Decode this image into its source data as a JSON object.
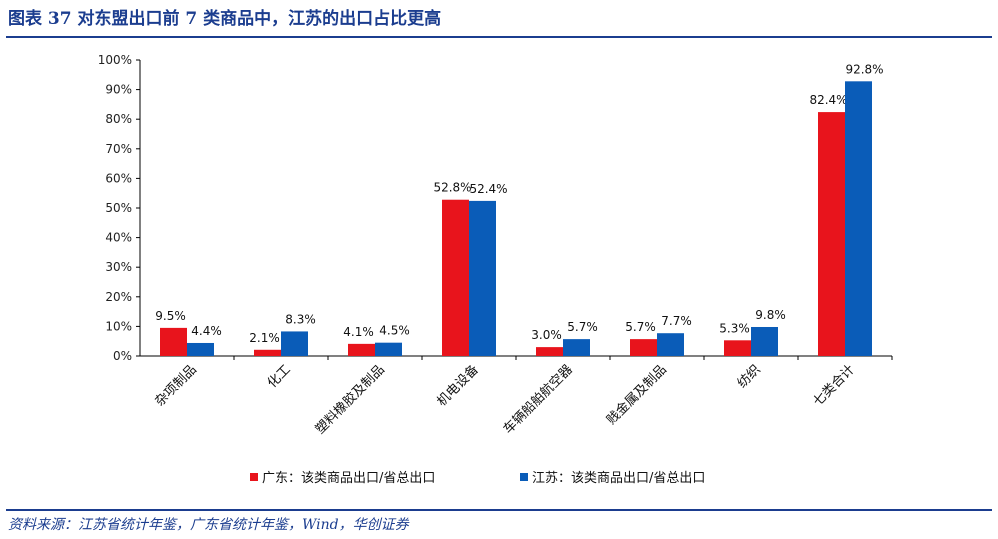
{
  "header": {
    "title": "图表 37   对东盟出口前 7 类商品中，江苏的出口占比更高"
  },
  "footer": {
    "source": "资料来源：江苏省统计年鉴，广东省统计年鉴，Wind，华创证券"
  },
  "chart_data": {
    "type": "bar",
    "categories": [
      "杂项制品",
      "化工",
      "塑料橡胶及制品",
      "机电设备",
      "车辆船舶航空器",
      "贱金属及制品",
      "纺织",
      "七类合计"
    ],
    "series": [
      {
        "name": "广东：该类商品出口/省总出口",
        "color": "#e8141c",
        "values": [
          9.5,
          2.1,
          4.1,
          52.8,
          3.0,
          5.7,
          5.3,
          82.4
        ],
        "labels": [
          "9.5%",
          "2.1%",
          "4.1%",
          "52.8%",
          "3.0%",
          "5.7%",
          "5.3%",
          "82.4%"
        ]
      },
      {
        "name": "江苏：该类商品出口/省总出口",
        "color": "#0a5cb8",
        "values": [
          4.4,
          8.3,
          4.5,
          52.4,
          5.7,
          7.7,
          9.8,
          92.8
        ],
        "labels": [
          "4.4%",
          "8.3%",
          "4.5%",
          "52.4%",
          "5.7%",
          "7.7%",
          "9.8%",
          "92.8%"
        ]
      }
    ],
    "yticks": [
      "0%",
      "10%",
      "20%",
      "30%",
      "40%",
      "50%",
      "60%",
      "70%",
      "80%",
      "90%",
      "100%"
    ],
    "ylim": [
      0,
      100
    ],
    "grid": false,
    "legend_position": "bottom"
  }
}
